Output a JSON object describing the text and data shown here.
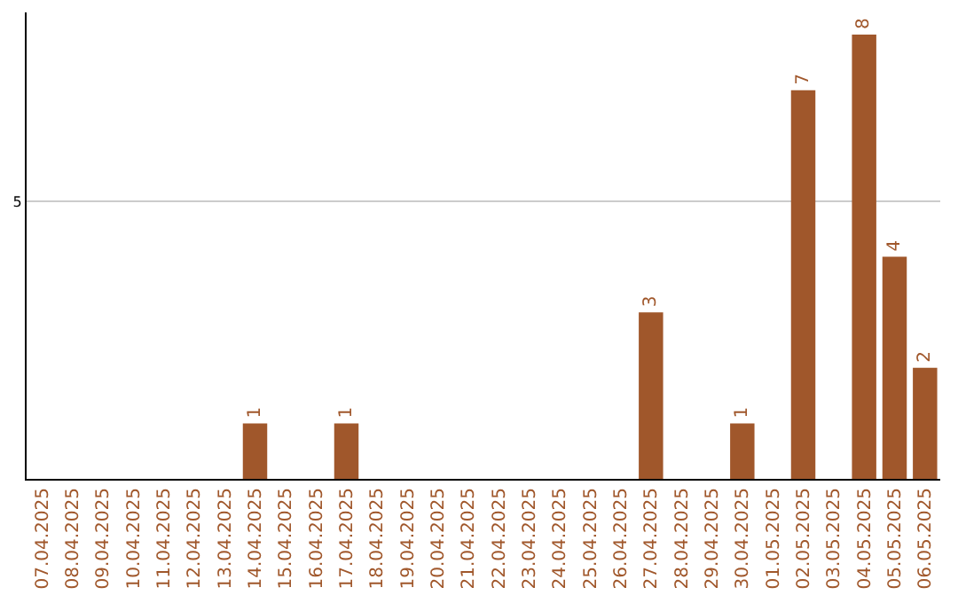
{
  "chart_data": {
    "type": "bar",
    "categories": [
      "07.04.2025",
      "08.04.2025",
      "09.04.2025",
      "10.04.2025",
      "11.04.2025",
      "12.04.2025",
      "13.04.2025",
      "14.04.2025",
      "15.04.2025",
      "16.04.2025",
      "17.04.2025",
      "18.04.2025",
      "19.04.2025",
      "20.04.2025",
      "21.04.2025",
      "22.04.2025",
      "23.04.2025",
      "24.04.2025",
      "25.04.2025",
      "26.04.2025",
      "27.04.2025",
      "28.04.2025",
      "29.04.2025",
      "30.04.2025",
      "01.05.2025",
      "02.05.2025",
      "03.05.2025",
      "04.05.2025",
      "05.05.2025",
      "06.05.2025"
    ],
    "values": [
      0,
      0,
      0,
      0,
      0,
      0,
      0,
      1,
      0,
      0,
      1,
      0,
      0,
      0,
      0,
      0,
      0,
      0,
      0,
      0,
      3,
      0,
      0,
      1,
      0,
      7,
      0,
      8,
      4,
      2
    ],
    "value_labels": [
      null,
      null,
      null,
      null,
      null,
      null,
      null,
      "1",
      null,
      null,
      "1",
      null,
      null,
      null,
      null,
      null,
      null,
      null,
      null,
      null,
      "3",
      null,
      null,
      "1",
      null,
      "7",
      null,
      "8",
      "4",
      "2"
    ],
    "color": "#a0572b",
    "ylim": [
      0,
      8.4
    ],
    "yticks": [
      5
    ],
    "grid": "y",
    "legend": false
  }
}
